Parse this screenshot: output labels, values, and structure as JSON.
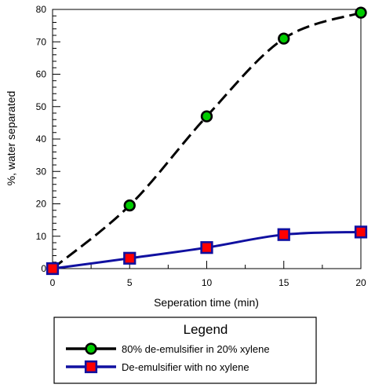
{
  "chart_data": {
    "type": "line",
    "xlabel": "Seperation time (min)",
    "ylabel": "%, water separated",
    "xlim": [
      0,
      20
    ],
    "ylim": [
      0,
      80
    ],
    "x_ticks": [
      0,
      5,
      10,
      15,
      20
    ],
    "y_ticks": [
      0,
      10,
      20,
      30,
      40,
      50,
      60,
      70,
      80
    ],
    "x_tick_labels": [
      "0",
      "5",
      "10",
      "15",
      "20"
    ],
    "y_tick_labels": [
      "0",
      "10",
      "20",
      "30",
      "40",
      "50",
      "60",
      "70",
      "80"
    ],
    "grid": false,
    "series": [
      {
        "name": "80% de-emulsifier in 20% xylene",
        "x": [
          0,
          5,
          10,
          15,
          20
        ],
        "values": [
          0,
          19.5,
          47,
          71,
          79
        ],
        "color": "#000000",
        "marker_fill": "#00cc00",
        "marker": "circle",
        "line_style": "dashed"
      },
      {
        "name": "De-emulsifier with no xylene",
        "x": [
          0,
          5,
          10,
          15,
          20
        ],
        "values": [
          0,
          3.2,
          6.5,
          10.5,
          11.3
        ],
        "color": "#1010a0",
        "marker_fill": "#ff0000",
        "marker": "square",
        "line_style": "solid"
      }
    ],
    "legend": {
      "title": "Legend",
      "position": "bottom"
    }
  }
}
